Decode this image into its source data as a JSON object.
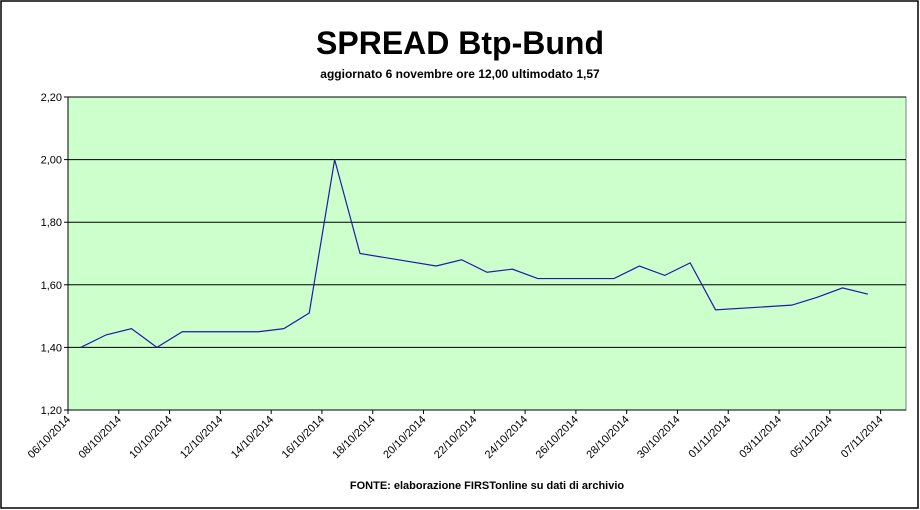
{
  "chart_data": {
    "type": "line",
    "title": "SPREAD Btp-Bund",
    "subtitle": "aggiornato 6 novembre ore 12,00  ultimodato  1,57",
    "annotation": "FONTE: elaborazione FIRSTonline su dati di archivio",
    "x": [
      "06/10/2014",
      "07/10/2014",
      "08/10/2014",
      "09/10/2014",
      "10/10/2014",
      "13/10/2014",
      "14/10/2014",
      "15/10/2014",
      "16/10/2014",
      "17/10/2014",
      "20/10/2014",
      "21/10/2014",
      "22/10/2014",
      "23/10/2014",
      "24/10/2014",
      "27/10/2014",
      "28/10/2014",
      "29/10/2014",
      "30/10/2014",
      "31/10/2014",
      "03/11/2014",
      "04/11/2014",
      "05/11/2014",
      "06/11/2014"
    ],
    "series": [
      {
        "name": "spread",
        "color": "#1c1ca8",
        "values": [
          1.4,
          1.44,
          1.46,
          1.4,
          1.45,
          1.45,
          1.46,
          1.51,
          2.0,
          1.7,
          1.66,
          1.68,
          1.64,
          1.65,
          1.62,
          1.62,
          1.66,
          1.63,
          1.67,
          1.52,
          1.535,
          1.56,
          1.59,
          1.57
        ]
      }
    ],
    "xlim": [
      "06/10/2014",
      "08/11/2014"
    ],
    "xticks": [
      "06/10/2014",
      "08/10/2014",
      "10/10/2014",
      "12/10/2014",
      "14/10/2014",
      "16/10/2014",
      "18/10/2014",
      "20/10/2014",
      "22/10/2014",
      "24/10/2014",
      "26/10/2014",
      "28/10/2014",
      "30/10/2014",
      "01/11/2014",
      "03/11/2014",
      "05/11/2014",
      "07/11/2014"
    ],
    "ylim": [
      1.2,
      2.2
    ],
    "yticks": [
      {
        "value": 1.2,
        "label": "1,20"
      },
      {
        "value": 1.4,
        "label": "1,40"
      },
      {
        "value": 1.6,
        "label": "1,60"
      },
      {
        "value": 1.8,
        "label": "1,80"
      },
      {
        "value": 2.0,
        "label": "2,00"
      },
      {
        "value": 2.2,
        "label": "2,20"
      }
    ],
    "grid": true,
    "plot_background": "#ccffcc"
  }
}
